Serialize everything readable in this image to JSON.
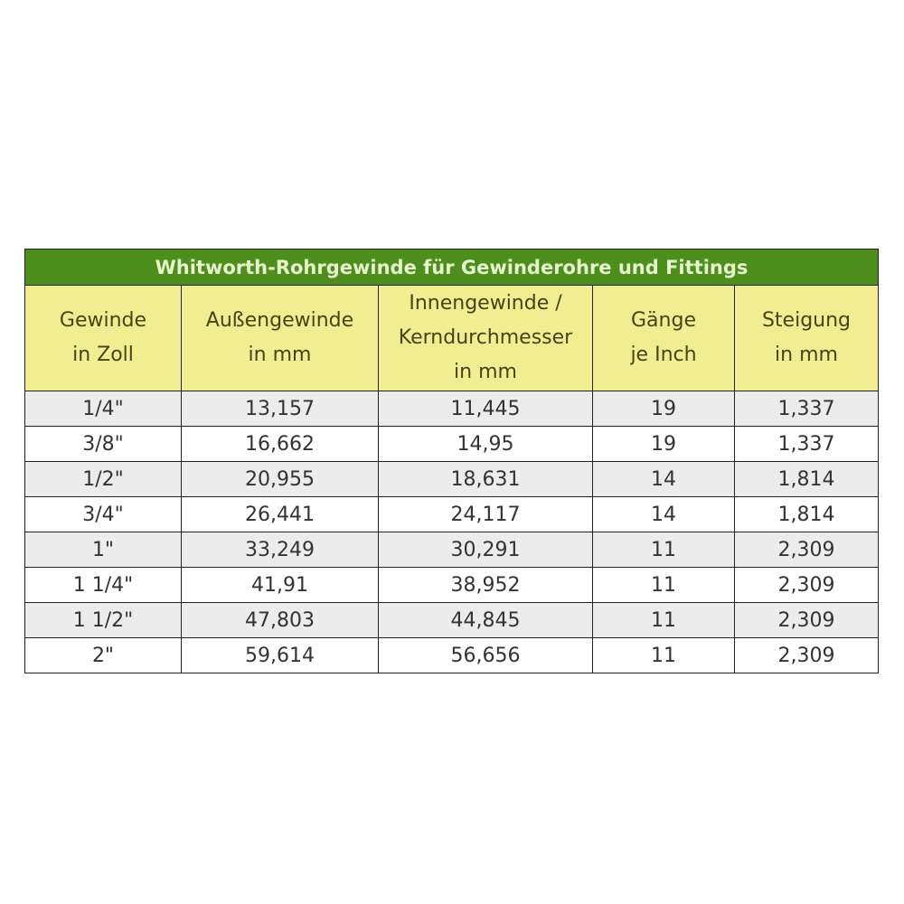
{
  "title": "Whitworth-Rohrgewinde für Gewinderohre und Fittings",
  "colors": {
    "title_bg": "#4e8e1d",
    "header_bg": "#f1ee92",
    "row_alt": "#ececec"
  },
  "headers": [
    [
      "Gewinde",
      "in Zoll"
    ],
    [
      "Außengewinde",
      "in mm"
    ],
    [
      "Innengewinde /",
      "Kerndurchmesser",
      "in mm"
    ],
    [
      "Gänge",
      "je Inch"
    ],
    [
      "Steigung",
      "in mm"
    ]
  ],
  "rows": [
    [
      "1/4\"",
      "13,157",
      "11,445",
      "19",
      "1,337"
    ],
    [
      "3/8\"",
      "16,662",
      "14,95",
      "19",
      "1,337"
    ],
    [
      "1/2\"",
      "20,955",
      "18,631",
      "14",
      "1,814"
    ],
    [
      "3/4\"",
      "26,441",
      "24,117",
      "14",
      "1,814"
    ],
    [
      "1\"",
      "33,249",
      "30,291",
      "11",
      "2,309"
    ],
    [
      "1 1/4\"",
      "41,91",
      "38,952",
      "11",
      "2,309"
    ],
    [
      "1 1/2\"",
      "47,803",
      "44,845",
      "11",
      "2,309"
    ],
    [
      "2\"",
      "59,614",
      "56,656",
      "11",
      "2,309"
    ]
  ]
}
